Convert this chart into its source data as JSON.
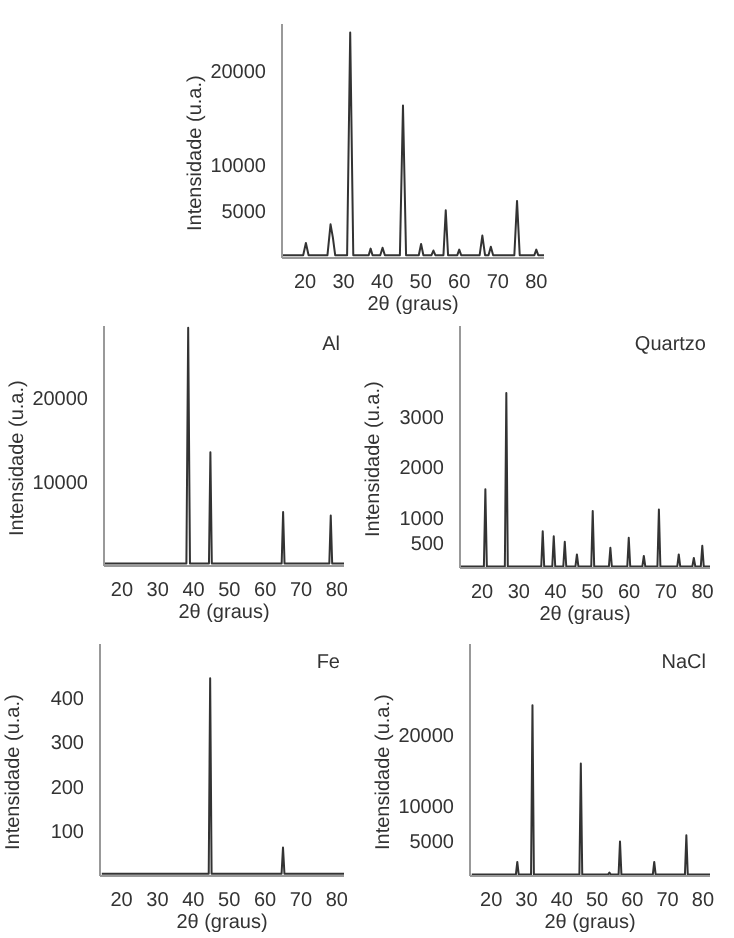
{
  "chart_data": [
    {
      "type": "line",
      "xlabel": "2θ (graus)",
      "ylabel": "Intensidade (u.a.)",
      "xlim": [
        14,
        82
      ],
      "ylim": [
        0,
        25000
      ],
      "xticks": [
        20,
        30,
        40,
        50,
        60,
        70,
        80
      ],
      "yticks": [
        5000,
        10000,
        20000
      ],
      "series": [
        {
          "color": "#333333",
          "x": [
            14,
            19.5,
            20.2,
            20.9,
            25.8,
            26.6,
            27.2,
            27.8,
            30.9,
            31.7,
            32.5,
            36.5,
            37,
            37.5,
            39.5,
            40.1,
            40.7,
            44.6,
            45.4,
            46.2,
            49.5,
            50.1,
            50.7,
            52.8,
            53.3,
            53.8,
            55.9,
            56.5,
            57.1,
            59.5,
            60,
            60.5,
            65.3,
            66,
            66.7,
            67.6,
            68.2,
            68.8,
            74.3,
            75,
            75.7,
            79.5,
            80,
            80.5,
            82
          ],
          "values": [
            300,
            300,
            1600,
            300,
            300,
            3600,
            2200,
            300,
            300,
            24100,
            300,
            300,
            1000,
            300,
            300,
            1100,
            300,
            300,
            16300,
            300,
            300,
            1500,
            300,
            300,
            800,
            300,
            300,
            5100,
            300,
            300,
            900,
            300,
            300,
            2400,
            300,
            300,
            1200,
            300,
            300,
            6100,
            300,
            300,
            900,
            300,
            300
          ]
        }
      ]
    },
    {
      "type": "line",
      "xlabel": "2θ (graus)",
      "ylabel": "Intensidade (u.a.)",
      "xlim": [
        15,
        82
      ],
      "ylim": [
        0,
        28500
      ],
      "xticks": [
        20,
        30,
        40,
        50,
        60,
        70,
        80
      ],
      "yticks": [
        10000,
        20000
      ],
      "series": [
        {
          "name": "Al",
          "color": "#333333",
          "x": [
            15,
            38,
            38.5,
            39,
            44.3,
            44.7,
            45.1,
            64.6,
            65,
            65.4,
            77.9,
            78.3,
            78.7,
            82
          ],
          "values": [
            300,
            300,
            28300,
            300,
            300,
            13500,
            300,
            300,
            6400,
            300,
            300,
            6000,
            300,
            300
          ]
        }
      ]
    },
    {
      "type": "line",
      "xlabel": "2θ (graus)",
      "ylabel": "Intensidade (u.a.)",
      "xlim": [
        14,
        82
      ],
      "ylim": [
        0,
        4800
      ],
      "xticks": [
        20,
        30,
        40,
        50,
        60,
        70,
        80
      ],
      "yticks": [
        500,
        1000,
        2000,
        3000
      ],
      "series": [
        {
          "name": "Quartzo",
          "color": "#333333",
          "x": [
            14,
            20.5,
            20.9,
            21.3,
            26.2,
            26.6,
            27,
            36.1,
            36.5,
            36.9,
            39.1,
            39.5,
            39.9,
            42.1,
            42.5,
            42.9,
            45.4,
            45.8,
            46.2,
            49.7,
            50.1,
            50.5,
            54.5,
            54.9,
            55.3,
            59.5,
            59.9,
            60.3,
            63.6,
            64,
            64.4,
            67.7,
            68.1,
            68.5,
            73.1,
            73.5,
            73.9,
            77.2,
            77.6,
            78,
            79.5,
            79.9,
            80.3,
            82
          ],
          "values": [
            30,
            30,
            1560,
            30,
            30,
            3470,
            30,
            30,
            730,
            30,
            30,
            630,
            30,
            30,
            520,
            30,
            30,
            270,
            30,
            30,
            1130,
            30,
            30,
            400,
            30,
            30,
            600,
            30,
            30,
            240,
            30,
            30,
            1160,
            30,
            30,
            270,
            30,
            30,
            200,
            30,
            30,
            440,
            30,
            30
          ]
        }
      ]
    },
    {
      "type": "line",
      "xlabel": "2θ (graus)",
      "ylabel": "Intensidade (u.a.)",
      "xlim": [
        14,
        82
      ],
      "ylim": [
        0,
        520
      ],
      "xticks": [
        20,
        30,
        40,
        50,
        60,
        70,
        80
      ],
      "yticks": [
        100,
        200,
        300,
        400
      ],
      "series": [
        {
          "name": "Fe",
          "color": "#333333",
          "x": [
            14.5,
            44.3,
            44.7,
            45.1,
            64.6,
            65,
            65.4,
            82
          ],
          "values": [
            5,
            5,
            443,
            5,
            5,
            64,
            5,
            5
          ]
        }
      ]
    },
    {
      "type": "line",
      "xlabel": "2θ (graus)",
      "ylabel": "Intensidade (u.a.)",
      "xlim": [
        14,
        82
      ],
      "ylim": [
        0,
        33000
      ],
      "xticks": [
        20,
        30,
        40,
        50,
        60,
        70,
        80
      ],
      "yticks": [
        5000,
        10000,
        20000
      ],
      "series": [
        {
          "name": "NaCl",
          "color": "#333333",
          "x": [
            14.5,
            27,
            27.4,
            27.8,
            31.3,
            31.7,
            32.1,
            45,
            45.4,
            45.8,
            53.1,
            53.5,
            53.9,
            56.1,
            56.5,
            56.9,
            65.8,
            66.2,
            66.6,
            74.9,
            75.3,
            75.7,
            82
          ],
          "values": [
            200,
            200,
            2000,
            200,
            200,
            24300,
            200,
            200,
            16000,
            200,
            200,
            500,
            200,
            200,
            4900,
            200,
            200,
            2000,
            200,
            200,
            5800,
            200,
            200
          ]
        }
      ]
    }
  ]
}
